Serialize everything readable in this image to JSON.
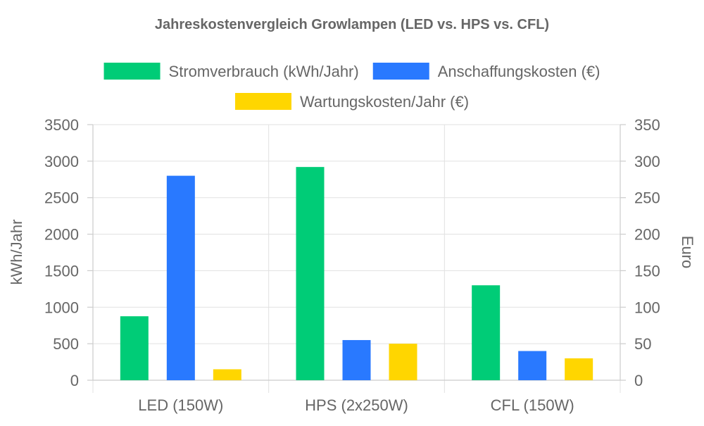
{
  "chart_data": {
    "type": "bar",
    "title": "Jahreskostenvergleich Growlampen (LED vs. HPS vs. CFL)",
    "categories": [
      "LED (150W)",
      "HPS (2x250W)",
      "CFL (150W)"
    ],
    "series": [
      {
        "name": "Stromverbrauch (kWh/Jahr)",
        "axis": "left",
        "color": "#00cc77",
        "values": [
          876,
          2920,
          1300
        ]
      },
      {
        "name": "Anschaffungskosten (€)",
        "axis": "right",
        "color": "#2979ff",
        "values": [
          280,
          55,
          40
        ]
      },
      {
        "name": "Wartungskosten/Jahr (€)",
        "axis": "right",
        "color": "#ffd600",
        "values": [
          15,
          50,
          30
        ]
      }
    ],
    "y_left": {
      "label": "kWh/Jahr",
      "min": 0,
      "max": 3500,
      "ticks": [
        "0",
        "500",
        "1000",
        "1500",
        "2000",
        "2500",
        "3000",
        "3500"
      ]
    },
    "y_right": {
      "label": "Euro",
      "min": 0,
      "max": 350,
      "ticks": [
        "0",
        "50",
        "100",
        "150",
        "200",
        "250",
        "300",
        "350"
      ]
    },
    "grid": true,
    "legend_position": "top"
  }
}
